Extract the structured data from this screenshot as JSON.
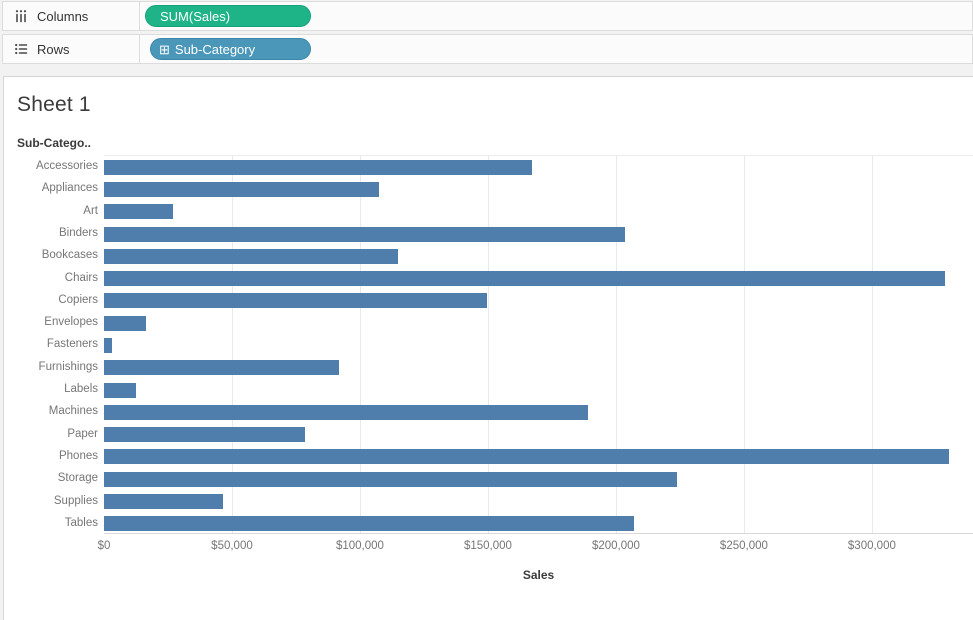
{
  "colors": {
    "bar": "#4f7dac",
    "pill_green": "#1eb488",
    "pill_green_border": "#12a478",
    "pill_blue": "#4a97b9",
    "pill_blue_border": "#3d88a9"
  },
  "shelves": {
    "columns": {
      "label": "Columns",
      "pill_label": "SUM(Sales)"
    },
    "rows": {
      "label": "Rows",
      "pill_icon": "⊞",
      "pill_label": "Sub-Category"
    }
  },
  "sheet": {
    "title": "Sheet 1"
  },
  "chart_data": {
    "type": "bar",
    "orientation": "horizontal",
    "title": "Sheet 1",
    "row_header": "Sub-Catego..",
    "series_name": "SUM(Sales)",
    "categories": [
      "Accessories",
      "Appliances",
      "Art",
      "Binders",
      "Bookcases",
      "Chairs",
      "Copiers",
      "Envelopes",
      "Fasteners",
      "Furnishings",
      "Labels",
      "Machines",
      "Paper",
      "Phones",
      "Storage",
      "Supplies",
      "Tables"
    ],
    "values": [
      167380,
      107532,
      27119,
      203413,
      114880,
      328449,
      149528,
      16476,
      3024,
      91705,
      12486,
      189239,
      78479,
      330007,
      223844,
      46674,
      206966
    ],
    "xlabel": "Sales",
    "x_ticks": [
      {
        "value": 0,
        "label": "$0"
      },
      {
        "value": 50000,
        "label": "$50,000"
      },
      {
        "value": 100000,
        "label": "$100,000"
      },
      {
        "value": 150000,
        "label": "$150,000"
      },
      {
        "value": 200000,
        "label": "$200,000"
      },
      {
        "value": 250000,
        "label": "$250,000"
      },
      {
        "value": 300000,
        "label": "$300,000"
      }
    ],
    "xlim": [
      0,
      339500
    ],
    "grid": "vertical"
  }
}
